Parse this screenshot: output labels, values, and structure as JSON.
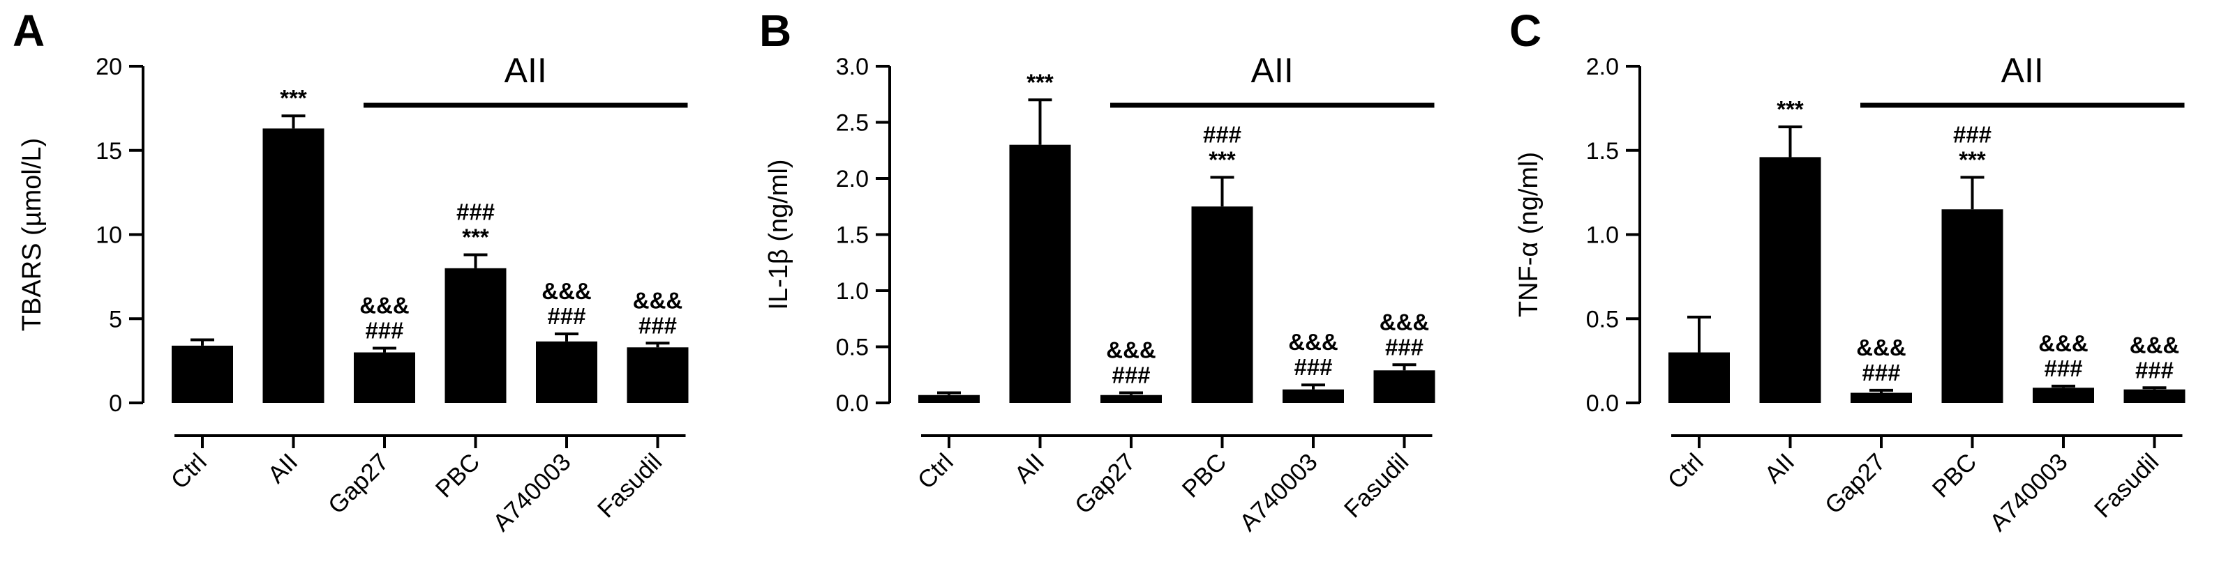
{
  "chart_data": [
    {
      "panel": "A",
      "type": "bar",
      "ylabel": "TBARS (µmol/L)",
      "ylim": [
        0,
        20
      ],
      "yticks": [
        0,
        5,
        10,
        15,
        20
      ],
      "ytick_labels": [
        "0",
        "5",
        "10",
        "15",
        "20"
      ],
      "categories": [
        "Ctrl",
        "AII",
        "Gap27",
        "PBC",
        "A740003",
        "Fasudil"
      ],
      "values": [
        3.4,
        16.3,
        3.0,
        8.0,
        3.65,
        3.3
      ],
      "errors": [
        0.35,
        0.75,
        0.25,
        0.8,
        0.45,
        0.25
      ],
      "significance": [
        [],
        [
          "***"
        ],
        [
          "&&&",
          "###"
        ],
        [
          "###",
          "***"
        ],
        [
          "&&&",
          "###"
        ],
        [
          "&&&",
          "###"
        ]
      ],
      "group_label": "AII",
      "group_start": 2,
      "group_end": 5
    },
    {
      "panel": "B",
      "type": "bar",
      "ylabel": "IL-1β (ng/ml)",
      "ylim": [
        0,
        3.0
      ],
      "yticks": [
        0,
        0.5,
        1.0,
        1.5,
        2.0,
        2.5,
        3.0
      ],
      "ytick_labels": [
        "0.0",
        "0.5",
        "1.0",
        "1.5",
        "2.0",
        "2.5",
        "3.0"
      ],
      "categories": [
        "Ctrl",
        "AII",
        "Gap27",
        "PBC",
        "A740003",
        "Fasudil"
      ],
      "values": [
        0.07,
        2.3,
        0.07,
        1.75,
        0.12,
        0.29
      ],
      "errors": [
        0.02,
        0.4,
        0.02,
        0.26,
        0.04,
        0.05
      ],
      "significance": [
        [],
        [
          "***"
        ],
        [
          "&&&",
          "###"
        ],
        [
          "###",
          "***"
        ],
        [
          "&&&",
          "###"
        ],
        [
          "&&&",
          "###"
        ]
      ],
      "group_label": "AII",
      "group_start": 2,
      "group_end": 5
    },
    {
      "panel": "C",
      "type": "bar",
      "ylabel": "TNF-α (ng/ml)",
      "ylim": [
        0,
        2.0
      ],
      "yticks": [
        0,
        0.5,
        1.0,
        1.5,
        2.0
      ],
      "ytick_labels": [
        "0.0",
        "0.5",
        "1.0",
        "1.5",
        "2.0"
      ],
      "categories": [
        "Ctrl",
        "AII",
        "Gap27",
        "PBC",
        "A740003",
        "Fasudil"
      ],
      "values": [
        0.3,
        1.46,
        0.06,
        1.15,
        0.09,
        0.08
      ],
      "errors": [
        0.21,
        0.18,
        0.015,
        0.19,
        0.01,
        0.01
      ],
      "significance": [
        [],
        [
          "***"
        ],
        [
          "&&&",
          "###"
        ],
        [
          "###",
          "***"
        ],
        [
          "&&&",
          "###"
        ],
        [
          "&&&",
          "###"
        ]
      ],
      "group_label": "AII",
      "group_start": 2,
      "group_end": 5
    }
  ]
}
